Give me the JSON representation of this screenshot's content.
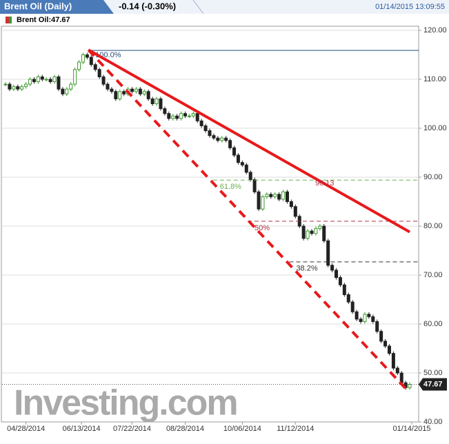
{
  "chart_data": {
    "type": "candlestick",
    "title": "Brent Oil (Daily)",
    "change": "-0.14 (-0.30%)",
    "timestamp": "01/14/2015 13:09:55",
    "legend": "Brent Oil:47.67",
    "last_price": 47.67,
    "watermark": "Investing.com",
    "up_color": "#3a9a2a",
    "down_color": "#222222",
    "xlim": [
      0,
      100
    ],
    "ylim": [
      40,
      120
    ],
    "yticks": [
      {
        "value": 120,
        "label": "120.00"
      },
      {
        "value": 110,
        "label": "110.00"
      },
      {
        "value": 100,
        "label": "100.00"
      },
      {
        "value": 90,
        "label": "90.00"
      },
      {
        "value": 80,
        "label": "80.00"
      },
      {
        "value": 70,
        "label": "70.00"
      },
      {
        "value": 60,
        "label": "60.00"
      },
      {
        "value": 50,
        "label": "50.00"
      },
      {
        "value": 40,
        "label": "40.00"
      }
    ],
    "xticks": [
      {
        "value": 5,
        "label": "04/28/2014"
      },
      {
        "value": 18.6,
        "label": "06/13/2014"
      },
      {
        "value": 31,
        "label": "07/22/2014"
      },
      {
        "value": 44,
        "label": "08/28/2014"
      },
      {
        "value": 58,
        "label": "10/06/2014"
      },
      {
        "value": 71,
        "label": "11/12/2014"
      },
      {
        "value": 99.5,
        "label": "01/14/2015"
      }
    ],
    "grid": true,
    "values": [
      109,
      108,
      108.5,
      108,
      108.5,
      109,
      110,
      109.5,
      110.5,
      110,
      110,
      109.5,
      110.5,
      108,
      107,
      108,
      109,
      112,
      113.5,
      115,
      114.5,
      113,
      112,
      110.5,
      109,
      108,
      107.5,
      106,
      107.5,
      107,
      108,
      107.5,
      108,
      107,
      107.5,
      106,
      105,
      106,
      104,
      103,
      102,
      102.5,
      102,
      103,
      102.5,
      102.5,
      103,
      101.5,
      100.5,
      99.5,
      98.5,
      98,
      97.5,
      98,
      97.5,
      96,
      94.5,
      93,
      92.5,
      91,
      89.5,
      87,
      83.5,
      86,
      86.5,
      86,
      86.5,
      85.5,
      87,
      85,
      84,
      82,
      80,
      77.5,
      79,
      78.5,
      79.5,
      80,
      77,
      72,
      71,
      69.5,
      68,
      66,
      64.5,
      62.5,
      61,
      60.5,
      62,
      61.5,
      60.5,
      58.5,
      56.5,
      55.5,
      54,
      51,
      50,
      48,
      47,
      47.67
    ],
    "fib_levels": [
      {
        "label": "100.0%",
        "value": 115.9,
        "start": 20.3,
        "color": "#1f4e79",
        "dashed": false
      },
      {
        "label": "61.8%",
        "value": 89.4,
        "start": 50.8,
        "color": "#6ab04c",
        "dashed": true
      },
      {
        "label": "50%",
        "value": 81,
        "start": 59.3,
        "color": "#b03040",
        "dashed": true
      },
      {
        "label": "38.2%",
        "value": 72.7,
        "start": 69.5,
        "color": "#333333",
        "dashed": true
      }
    ],
    "trendlines": [
      {
        "x": [
          20.3,
          99
        ],
        "y": [
          116,
          78.8
        ],
        "dashed": false,
        "color": "#e8191b"
      },
      {
        "x": [
          20.3,
          98.7
        ],
        "y": [
          116,
          46.2
        ],
        "dashed": true,
        "color": "#e8191b"
      }
    ],
    "annotation": "90.13"
  }
}
